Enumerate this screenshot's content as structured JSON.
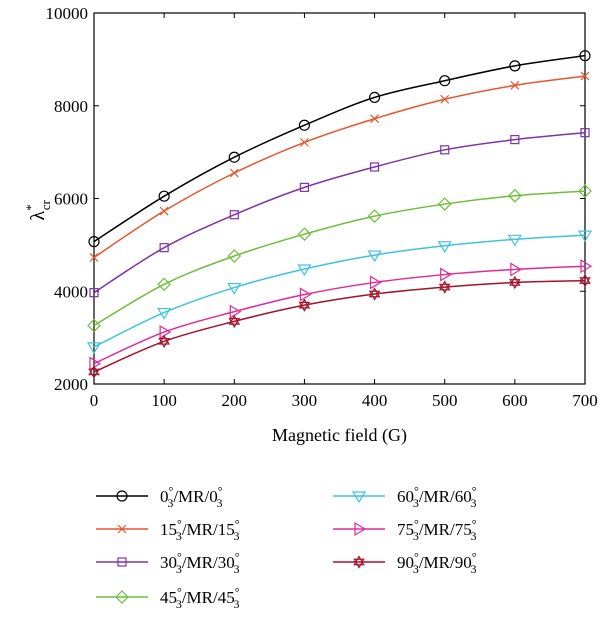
{
  "chart_data": {
    "type": "line",
    "xlabel": "Magnetic field (G)",
    "ylabel": "λ*cr",
    "ylabel_main": "λ",
    "ylabel_sup": "*",
    "ylabel_sub": "cr",
    "xlim": [
      0,
      700
    ],
    "ylim": [
      2000,
      10000
    ],
    "x_ticks": [
      "0",
      "100",
      "200",
      "300",
      "400",
      "500",
      "600",
      "700"
    ],
    "y_ticks": [
      "2000",
      "4000",
      "6000",
      "8000",
      "10000"
    ],
    "grid": false,
    "legend_position": "bottom",
    "x": [
      0,
      100,
      200,
      300,
      400,
      500,
      600,
      700
    ],
    "series": [
      {
        "name": "0°3/MR/0°3",
        "n1": "0",
        "n2": "0",
        "color": "#000000",
        "marker": "circle",
        "values": [
          5070,
          6050,
          6890,
          7580,
          8180,
          8540,
          8860,
          9080
        ]
      },
      {
        "name": "15°3/MR/15°3",
        "n1": "15",
        "n2": "15",
        "color": "#e8542b",
        "marker": "x",
        "values": [
          4730,
          5730,
          6550,
          7210,
          7720,
          8140,
          8440,
          8640
        ]
      },
      {
        "name": "30°3/MR/30°3",
        "n1": "30",
        "n2": "30",
        "color": "#8033a6",
        "marker": "square",
        "values": [
          3970,
          4940,
          5650,
          6240,
          6680,
          7050,
          7270,
          7420
        ]
      },
      {
        "name": "45°3/MR/45°3",
        "n1": "45",
        "n2": "45",
        "color": "#6cbf3a",
        "marker": "diamond",
        "values": [
          3260,
          4150,
          4760,
          5230,
          5620,
          5880,
          6060,
          6160
        ]
      },
      {
        "name": "60°3/MR/60°3",
        "n1": "60",
        "n2": "60",
        "color": "#3fc3de",
        "marker": "triangle-down",
        "values": [
          2800,
          3540,
          4080,
          4480,
          4780,
          4980,
          5120,
          5210
        ]
      },
      {
        "name": "75°3/MR/75°3",
        "n1": "75",
        "n2": "75",
        "color": "#e02a97",
        "marker": "triangle-right",
        "values": [
          2440,
          3120,
          3560,
          3930,
          4190,
          4360,
          4470,
          4540
        ]
      },
      {
        "name": "90°3/MR/90°3",
        "n1": "90",
        "n2": "90",
        "color": "#a3122a",
        "marker": "hexagram",
        "values": [
          2260,
          2920,
          3350,
          3700,
          3940,
          4090,
          4190,
          4230
        ]
      }
    ]
  }
}
